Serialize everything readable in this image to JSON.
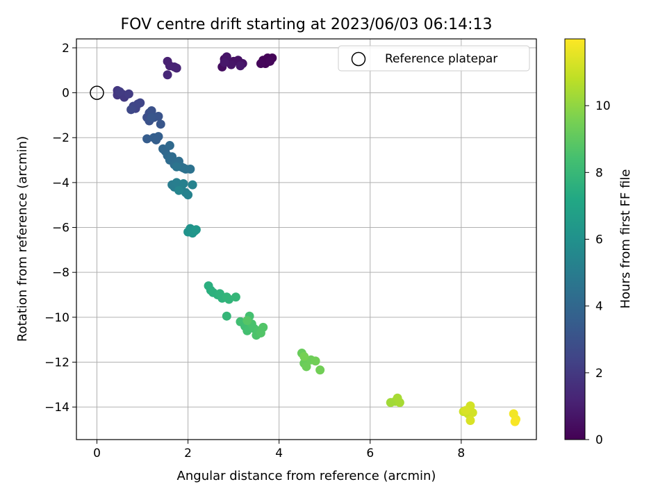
{
  "chart_data": {
    "type": "scatter",
    "title": "FOV centre drift starting at 2023/06/03 06:14:13",
    "xlabel": "Angular distance from reference (arcmin)",
    "ylabel": "Rotation from reference (arcmin)",
    "xlim": [
      -0.45,
      9.65
    ],
    "ylim": [
      -15.45,
      2.4
    ],
    "xticks": [
      0,
      2,
      4,
      6,
      8
    ],
    "yticks": [
      2,
      0,
      -2,
      -4,
      -6,
      -8,
      -10,
      -12,
      -14
    ],
    "grid": true,
    "legend": {
      "label": "Reference platepar",
      "position": "top-right"
    },
    "reference_point": {
      "x": 0,
      "y": 0
    },
    "colorbar": {
      "label": "Hours from first FF file",
      "colormap": "viridis",
      "range": [
        0,
        12
      ],
      "ticks": [
        0,
        2,
        4,
        6,
        8,
        10
      ]
    },
    "points": [
      {
        "x": 3.7,
        "y": 1.3,
        "h": 0.1
      },
      {
        "x": 3.65,
        "y": 1.45,
        "h": 0.1
      },
      {
        "x": 3.75,
        "y": 1.55,
        "h": 0.1
      },
      {
        "x": 3.85,
        "y": 1.55,
        "h": 0.1
      },
      {
        "x": 3.8,
        "y": 1.4,
        "h": 0.2
      },
      {
        "x": 3.6,
        "y": 1.3,
        "h": 0.2
      },
      {
        "x": 2.75,
        "y": 1.15,
        "h": 0.4
      },
      {
        "x": 2.8,
        "y": 1.5,
        "h": 0.4
      },
      {
        "x": 2.9,
        "y": 1.35,
        "h": 0.5
      },
      {
        "x": 3.0,
        "y": 1.4,
        "h": 0.5
      },
      {
        "x": 3.1,
        "y": 1.45,
        "h": 0.6
      },
      {
        "x": 3.2,
        "y": 1.3,
        "h": 0.6
      },
      {
        "x": 2.85,
        "y": 1.6,
        "h": 0.7
      },
      {
        "x": 2.95,
        "y": 1.25,
        "h": 0.7
      },
      {
        "x": 3.15,
        "y": 1.2,
        "h": 0.8
      },
      {
        "x": 2.8,
        "y": 1.35,
        "h": 0.8
      },
      {
        "x": 1.55,
        "y": 1.4,
        "h": 1.1
      },
      {
        "x": 1.6,
        "y": 1.2,
        "h": 1.1
      },
      {
        "x": 1.7,
        "y": 1.15,
        "h": 1.2
      },
      {
        "x": 1.75,
        "y": 1.1,
        "h": 1.2
      },
      {
        "x": 1.55,
        "y": 0.8,
        "h": 1.3
      },
      {
        "x": 0.45,
        "y": 0.1,
        "h": 1.9
      },
      {
        "x": 0.45,
        "y": -0.1,
        "h": 1.9
      },
      {
        "x": 0.55,
        "y": -0.05,
        "h": 2.0
      },
      {
        "x": 0.6,
        "y": -0.2,
        "h": 2.0
      },
      {
        "x": 0.7,
        "y": -0.05,
        "h": 2.1
      },
      {
        "x": 0.5,
        "y": 0.05,
        "h": 2.1
      },
      {
        "x": 0.85,
        "y": -0.7,
        "h": 2.4
      },
      {
        "x": 0.9,
        "y": -0.5,
        "h": 2.4
      },
      {
        "x": 0.95,
        "y": -0.45,
        "h": 2.5
      },
      {
        "x": 0.8,
        "y": -0.6,
        "h": 2.5
      },
      {
        "x": 0.75,
        "y": -0.75,
        "h": 2.6
      },
      {
        "x": 1.1,
        "y": -1.1,
        "h": 2.9
      },
      {
        "x": 1.15,
        "y": -0.9,
        "h": 2.9
      },
      {
        "x": 1.2,
        "y": -0.8,
        "h": 3.0
      },
      {
        "x": 1.15,
        "y": -1.25,
        "h": 3.0
      },
      {
        "x": 1.25,
        "y": -1.1,
        "h": 3.1
      },
      {
        "x": 1.35,
        "y": -1.05,
        "h": 3.1
      },
      {
        "x": 1.4,
        "y": -1.4,
        "h": 3.2
      },
      {
        "x": 1.2,
        "y": -1.1,
        "h": 3.2
      },
      {
        "x": 1.1,
        "y": -2.05,
        "h": 3.5
      },
      {
        "x": 1.25,
        "y": -2.0,
        "h": 3.6
      },
      {
        "x": 1.35,
        "y": -1.95,
        "h": 3.6
      },
      {
        "x": 1.3,
        "y": -2.1,
        "h": 3.6
      },
      {
        "x": 1.45,
        "y": -2.5,
        "h": 4.0
      },
      {
        "x": 1.5,
        "y": -2.6,
        "h": 4.0
      },
      {
        "x": 1.6,
        "y": -2.35,
        "h": 4.1
      },
      {
        "x": 1.55,
        "y": -2.8,
        "h": 4.1
      },
      {
        "x": 1.6,
        "y": -3.0,
        "h": 4.2
      },
      {
        "x": 1.65,
        "y": -2.85,
        "h": 4.2
      },
      {
        "x": 1.7,
        "y": -3.2,
        "h": 4.3
      },
      {
        "x": 1.8,
        "y": -3.05,
        "h": 4.3
      },
      {
        "x": 1.85,
        "y": -3.3,
        "h": 4.4
      },
      {
        "x": 1.9,
        "y": -3.35,
        "h": 4.4
      },
      {
        "x": 1.95,
        "y": -3.4,
        "h": 4.5
      },
      {
        "x": 2.05,
        "y": -3.4,
        "h": 4.5
      },
      {
        "x": 1.75,
        "y": -3.3,
        "h": 4.6
      },
      {
        "x": 1.65,
        "y": -4.1,
        "h": 5.0
      },
      {
        "x": 1.7,
        "y": -4.2,
        "h": 5.0
      },
      {
        "x": 1.75,
        "y": -4.0,
        "h": 5.1
      },
      {
        "x": 1.85,
        "y": -4.3,
        "h": 5.1
      },
      {
        "x": 1.9,
        "y": -4.05,
        "h": 5.2
      },
      {
        "x": 1.95,
        "y": -4.45,
        "h": 5.2
      },
      {
        "x": 2.0,
        "y": -4.55,
        "h": 5.3
      },
      {
        "x": 2.1,
        "y": -4.1,
        "h": 5.3
      },
      {
        "x": 1.8,
        "y": -4.35,
        "h": 5.4
      },
      {
        "x": 2.0,
        "y": -6.2,
        "h": 6.1
      },
      {
        "x": 2.05,
        "y": -6.05,
        "h": 6.1
      },
      {
        "x": 2.1,
        "y": -6.25,
        "h": 6.2
      },
      {
        "x": 2.15,
        "y": -6.15,
        "h": 6.2
      },
      {
        "x": 2.18,
        "y": -6.1,
        "h": 6.3
      },
      {
        "x": 2.45,
        "y": -8.6,
        "h": 7.5
      },
      {
        "x": 2.5,
        "y": -8.8,
        "h": 7.5
      },
      {
        "x": 2.55,
        "y": -8.9,
        "h": 7.6
      },
      {
        "x": 2.65,
        "y": -9.0,
        "h": 7.6
      },
      {
        "x": 2.7,
        "y": -8.95,
        "h": 7.7
      },
      {
        "x": 2.75,
        "y": -9.15,
        "h": 7.7
      },
      {
        "x": 2.85,
        "y": -9.1,
        "h": 7.8
      },
      {
        "x": 2.9,
        "y": -9.2,
        "h": 7.8
      },
      {
        "x": 3.05,
        "y": -9.1,
        "h": 7.9
      },
      {
        "x": 2.85,
        "y": -9.95,
        "h": 7.9
      },
      {
        "x": 3.15,
        "y": -10.2,
        "h": 8.3
      },
      {
        "x": 3.25,
        "y": -10.4,
        "h": 8.3
      },
      {
        "x": 3.3,
        "y": -10.6,
        "h": 8.4
      },
      {
        "x": 3.35,
        "y": -9.95,
        "h": 8.4
      },
      {
        "x": 3.4,
        "y": -10.3,
        "h": 8.5
      },
      {
        "x": 3.45,
        "y": -10.5,
        "h": 8.5
      },
      {
        "x": 3.5,
        "y": -10.8,
        "h": 8.6
      },
      {
        "x": 3.55,
        "y": -10.6,
        "h": 8.6
      },
      {
        "x": 3.6,
        "y": -10.7,
        "h": 8.7
      },
      {
        "x": 3.65,
        "y": -10.45,
        "h": 8.7
      },
      {
        "x": 3.3,
        "y": -10.15,
        "h": 8.8
      },
      {
        "x": 4.5,
        "y": -11.6,
        "h": 9.2
      },
      {
        "x": 4.55,
        "y": -12.05,
        "h": 9.2
      },
      {
        "x": 4.6,
        "y": -12.2,
        "h": 9.3
      },
      {
        "x": 4.7,
        "y": -11.9,
        "h": 9.3
      },
      {
        "x": 4.8,
        "y": -11.95,
        "h": 9.4
      },
      {
        "x": 4.9,
        "y": -12.35,
        "h": 9.4
      },
      {
        "x": 4.55,
        "y": -11.75,
        "h": 9.5
      },
      {
        "x": 6.45,
        "y": -13.8,
        "h": 10.3
      },
      {
        "x": 6.55,
        "y": -13.75,
        "h": 10.3
      },
      {
        "x": 6.6,
        "y": -13.6,
        "h": 10.4
      },
      {
        "x": 6.65,
        "y": -13.8,
        "h": 10.4
      },
      {
        "x": 8.05,
        "y": -14.2,
        "h": 11.1
      },
      {
        "x": 8.15,
        "y": -14.3,
        "h": 11.1
      },
      {
        "x": 8.2,
        "y": -13.95,
        "h": 11.2
      },
      {
        "x": 8.25,
        "y": -14.25,
        "h": 11.2
      },
      {
        "x": 8.2,
        "y": -14.6,
        "h": 11.3
      },
      {
        "x": 8.1,
        "y": -14.15,
        "h": 11.3
      },
      {
        "x": 9.15,
        "y": -14.3,
        "h": 11.8
      },
      {
        "x": 9.2,
        "y": -14.55,
        "h": 11.8
      },
      {
        "x": 9.18,
        "y": -14.65,
        "h": 11.9
      }
    ]
  }
}
